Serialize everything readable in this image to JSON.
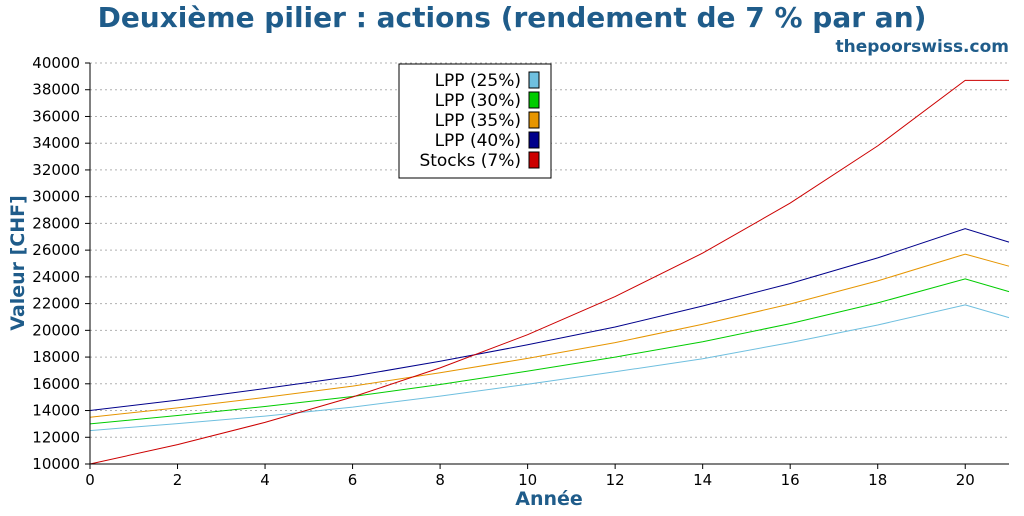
{
  "colors": {
    "title": "#1f5c8a",
    "axis_label": "#1f5c8a",
    "grid": "#b0b0b0",
    "text": "#000000"
  },
  "chart_data": {
    "type": "line",
    "title": "Deuxième pilier : actions (rendement de 7 % par an)",
    "subtitle": "thepoorswiss.com",
    "xlabel": "Année",
    "ylabel": "Valeur [CHF]",
    "xlim": [
      0,
      21
    ],
    "ylim": [
      10000,
      40000
    ],
    "xticks": [
      0,
      2,
      4,
      6,
      8,
      10,
      12,
      14,
      16,
      18,
      20
    ],
    "yticks": [
      10000,
      12000,
      14000,
      16000,
      18000,
      20000,
      22000,
      24000,
      26000,
      28000,
      30000,
      32000,
      34000,
      36000,
      38000,
      40000
    ],
    "grid": true,
    "legend_position": "top-center",
    "series": [
      {
        "name": "LPP (25%)",
        "color": "#6fbfdf",
        "x": [
          0,
          2,
          4,
          6,
          8,
          10,
          12,
          14,
          16,
          18,
          20,
          21
        ],
        "values": [
          12500,
          13020,
          13580,
          14260,
          15080,
          15970,
          16900,
          17880,
          19080,
          20400,
          21900,
          20950
        ]
      },
      {
        "name": "LPP (30%)",
        "color": "#00cc00",
        "x": [
          0,
          2,
          4,
          6,
          8,
          10,
          12,
          14,
          16,
          18,
          20,
          21
        ],
        "values": [
          13000,
          13630,
          14300,
          15050,
          15950,
          16950,
          18000,
          19150,
          20500,
          22050,
          23850,
          22900
        ]
      },
      {
        "name": "LPP (35%)",
        "color": "#e69500",
        "x": [
          0,
          2,
          4,
          6,
          8,
          10,
          12,
          14,
          16,
          18,
          20,
          21
        ],
        "values": [
          13500,
          14200,
          14980,
          15830,
          16830,
          17900,
          19080,
          20450,
          21970,
          23700,
          25700,
          24800
        ]
      },
      {
        "name": "LPP (40%)",
        "color": "#00008b",
        "x": [
          0,
          2,
          4,
          6,
          8,
          10,
          12,
          14,
          16,
          18,
          20,
          21
        ],
        "values": [
          14000,
          14780,
          15650,
          16560,
          17680,
          18920,
          20250,
          21820,
          23500,
          25420,
          27600,
          26600
        ]
      },
      {
        "name": "Stocks (7%)",
        "color": "#cc0000",
        "x": [
          0,
          2,
          4,
          6,
          8,
          10,
          12,
          14,
          16,
          18,
          20,
          21
        ],
        "values": [
          10000,
          11450,
          13110,
          15010,
          17190,
          19670,
          22520,
          25780,
          29520,
          33800,
          38700,
          38700
        ]
      }
    ]
  }
}
